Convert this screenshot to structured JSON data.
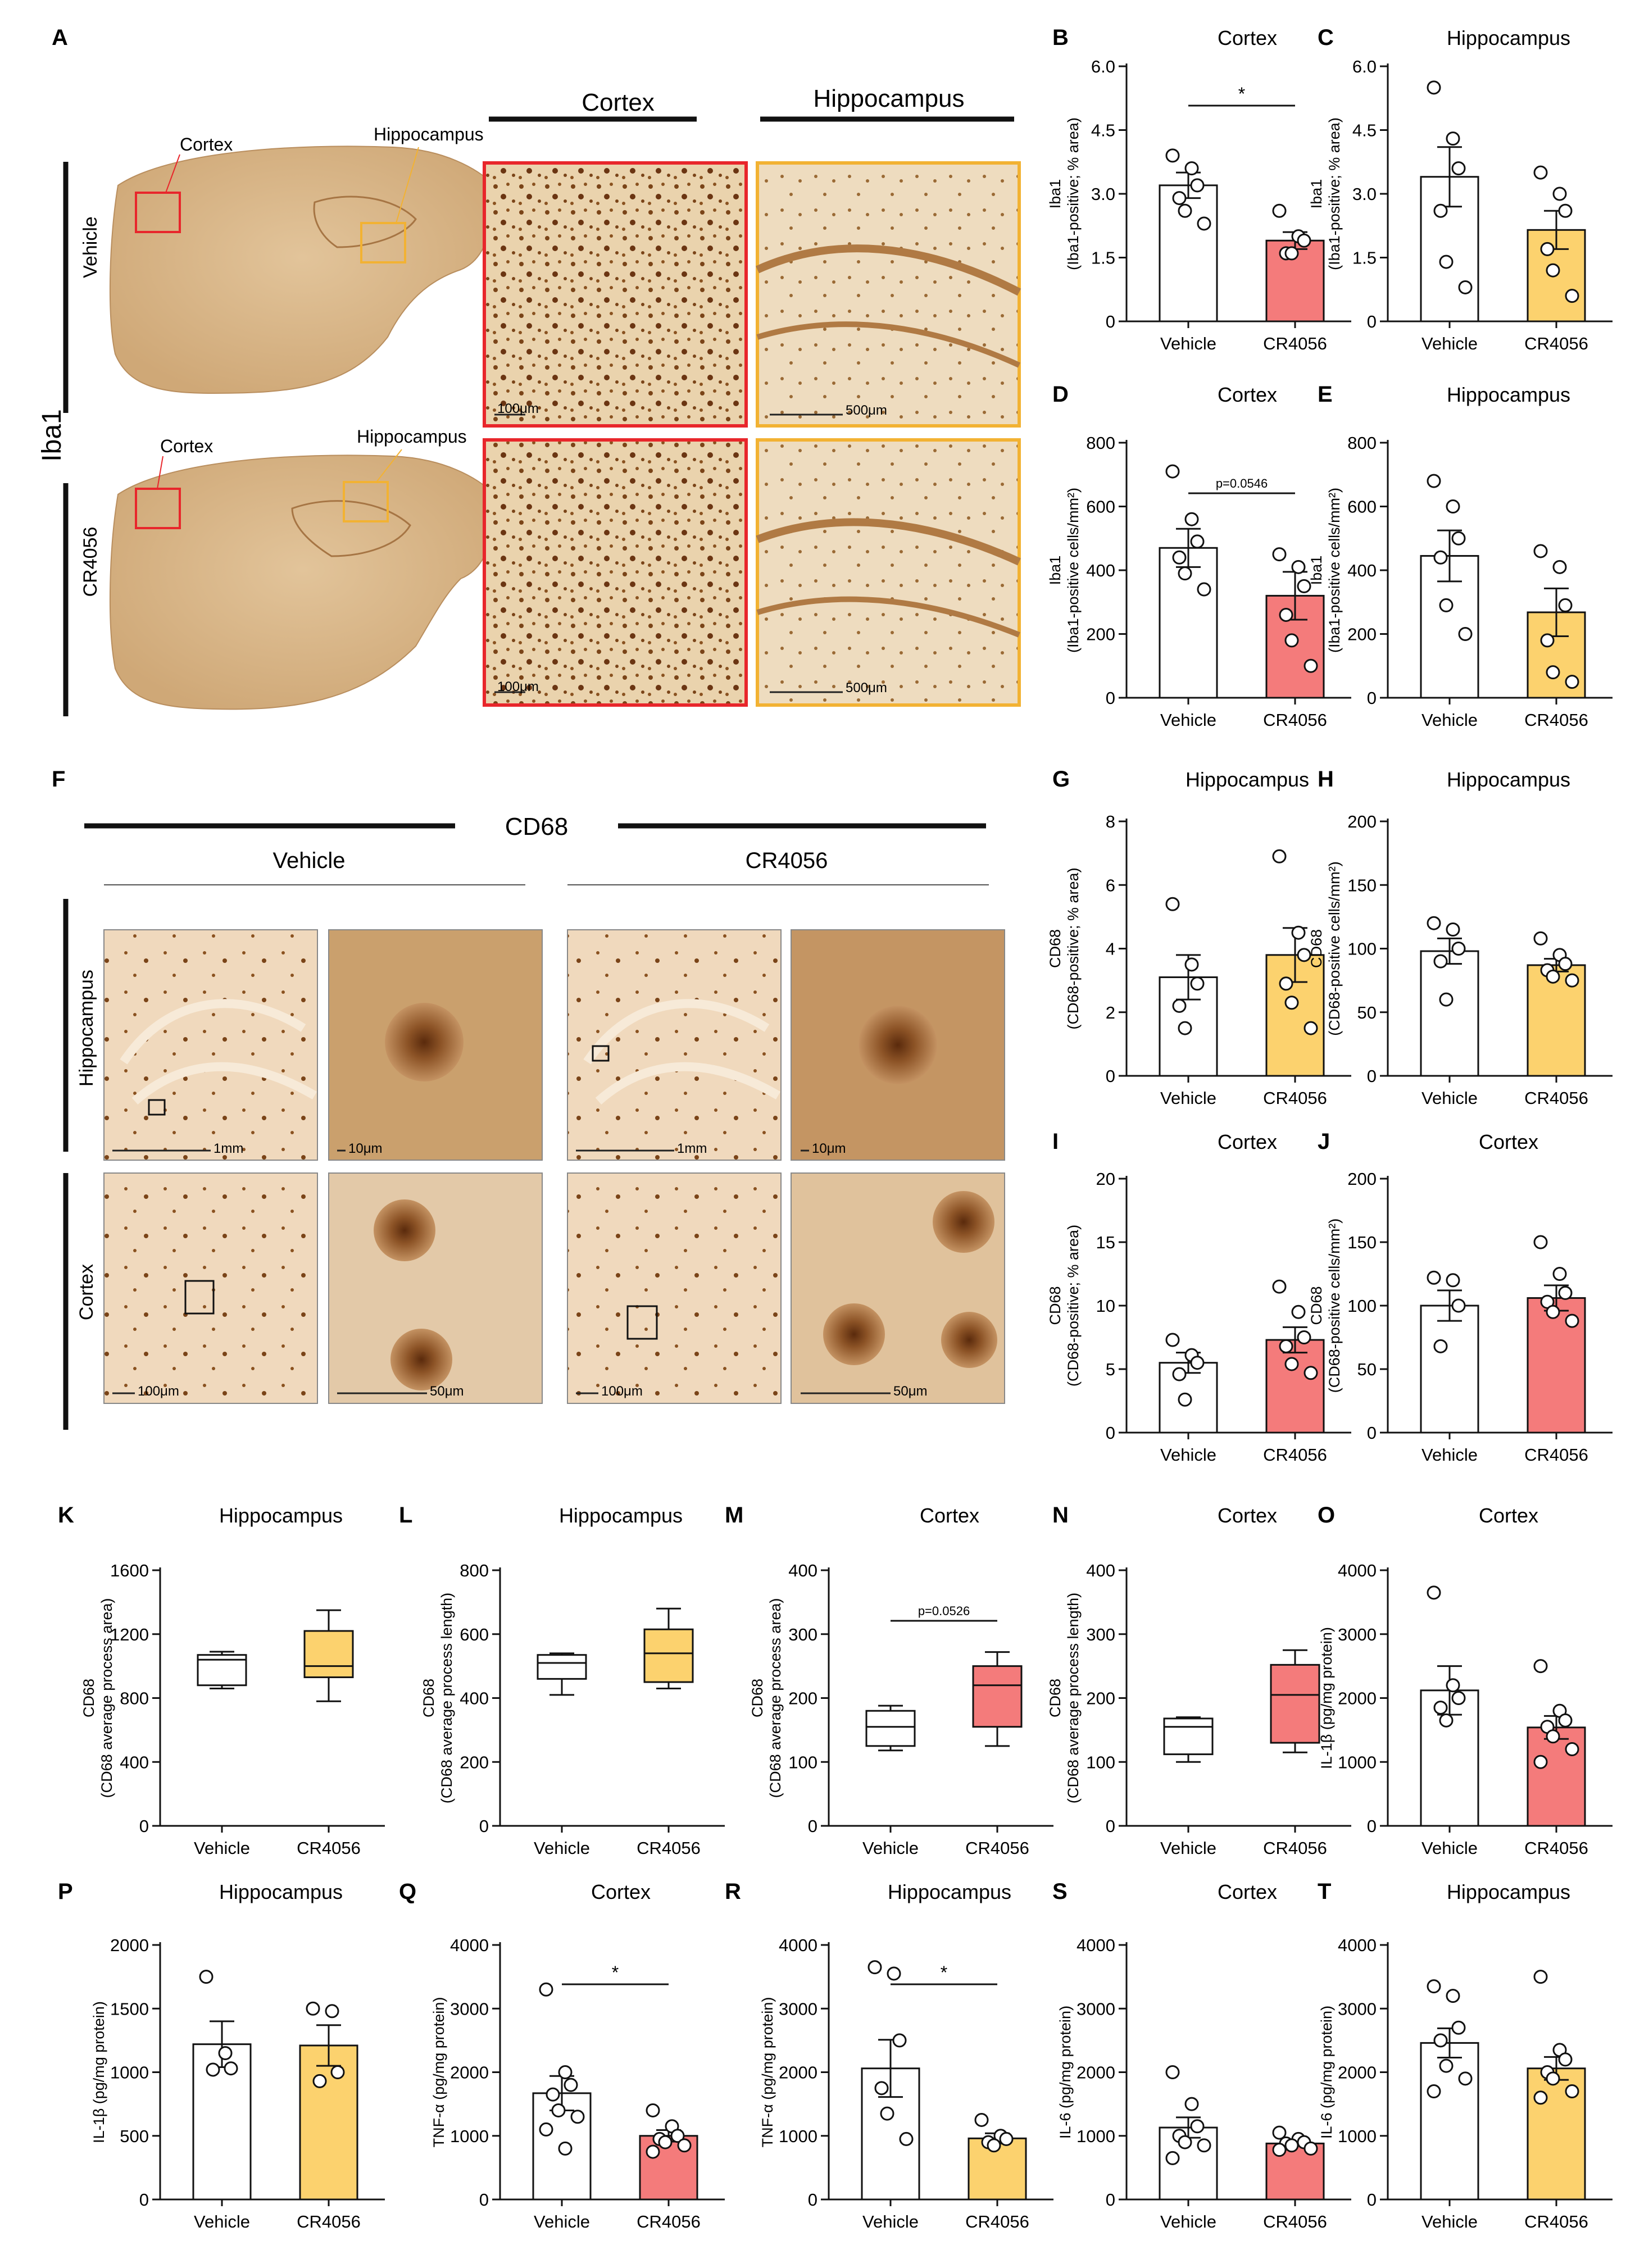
{
  "panel_A": {
    "letter": "A",
    "col_headers": [
      "Cortex",
      "Hippocampus"
    ],
    "rows": [
      "Vehicle",
      "CR4056"
    ],
    "stain": "Iba1",
    "region_labels": [
      "Cortex",
      "Hippocampus"
    ],
    "scale_bars": [
      "100μm",
      "500μm"
    ]
  },
  "panel_F": {
    "letter": "F",
    "title": "CD68",
    "groups": [
      "Vehicle",
      "CR4056"
    ],
    "rows": [
      "Hippocampus",
      "Cortex"
    ],
    "scale_bars_hippo": [
      "1mm",
      "10μm"
    ],
    "scale_bars_cortex": [
      "100μm",
      "50μm"
    ]
  },
  "colors": {
    "red": "#f47b7b",
    "yellow": "#fcd26e",
    "white": "#ffffff",
    "red_box": "#e8262b",
    "yellow_box": "#f2b233"
  },
  "chart_data": [
    {
      "letter": "B",
      "title": "Cortex",
      "type": "bar",
      "ylabel": "Iba1",
      "ylabel2": "(Iba1-positive; % area)",
      "categories": [
        "Vehicle",
        "CR4056"
      ],
      "colors": [
        "white",
        "red"
      ],
      "values": [
        3.2,
        1.9
      ],
      "sem": [
        0.3,
        0.2
      ],
      "points": [
        [
          3.9,
          3.6,
          3.2,
          2.9,
          2.6,
          2.3
        ],
        [
          2.6,
          2.0,
          1.9,
          1.6,
          1.6
        ]
      ],
      "ylim": [
        0,
        6
      ],
      "ticks": [
        "0",
        "1.5",
        "3.0",
        "4.5",
        "6.0"
      ],
      "sig": "*"
    },
    {
      "letter": "C",
      "title": "Hippocampus",
      "type": "bar",
      "ylabel": "Iba1",
      "ylabel2": "(Iba1-positive; % area)",
      "categories": [
        "Vehicle",
        "CR4056"
      ],
      "colors": [
        "white",
        "yellow"
      ],
      "values": [
        3.4,
        2.15
      ],
      "sem": [
        0.7,
        0.45
      ],
      "points": [
        [
          5.5,
          4.3,
          3.6,
          2.6,
          1.4,
          0.8
        ],
        [
          3.5,
          3.0,
          2.6,
          1.7,
          1.2,
          0.6
        ]
      ],
      "ylim": [
        0,
        6
      ],
      "ticks": [
        "0",
        "1.5",
        "3.0",
        "4.5",
        "6.0"
      ],
      "sig": ""
    },
    {
      "letter": "D",
      "title": "Cortex",
      "type": "bar",
      "ylabel": "Iba1",
      "ylabel2": "(Iba1-positive cells/mm²)",
      "categories": [
        "Vehicle",
        "CR4056"
      ],
      "colors": [
        "white",
        "red"
      ],
      "values": [
        470,
        320
      ],
      "sem": [
        60,
        75
      ],
      "points": [
        [
          710,
          560,
          490,
          440,
          390,
          340
        ],
        [
          450,
          410,
          350,
          260,
          180,
          100
        ]
      ],
      "ylim": [
        0,
        800
      ],
      "ticks": [
        "0",
        "200",
        "400",
        "600",
        "800"
      ],
      "sig": "p=0.0546"
    },
    {
      "letter": "E",
      "title": "Hippocampus",
      "type": "bar",
      "ylabel": "Iba1",
      "ylabel2": "(Iba1-positive cells/mm²)",
      "categories": [
        "Vehicle",
        "CR4056"
      ],
      "colors": [
        "white",
        "yellow"
      ],
      "values": [
        445,
        268
      ],
      "sem": [
        80,
        75
      ],
      "points": [
        [
          680,
          600,
          500,
          440,
          290,
          200
        ],
        [
          460,
          410,
          290,
          180,
          80,
          50
        ]
      ],
      "ylim": [
        0,
        800
      ],
      "ticks": [
        "0",
        "200",
        "400",
        "600",
        "800"
      ],
      "sig": ""
    },
    {
      "letter": "G",
      "title": "Hippocampus",
      "type": "bar",
      "ylabel": "CD68",
      "ylabel2": "(CD68-positive; % area)",
      "categories": [
        "Vehicle",
        "CR4056"
      ],
      "colors": [
        "white",
        "yellow"
      ],
      "values": [
        3.1,
        3.8
      ],
      "sem": [
        0.7,
        0.85
      ],
      "points": [
        [
          5.4,
          3.5,
          2.9,
          2.2,
          1.5
        ],
        [
          6.9,
          4.5,
          3.8,
          2.9,
          2.3,
          1.5
        ]
      ],
      "ylim": [
        0,
        8
      ],
      "ticks": [
        "0",
        "2",
        "4",
        "6",
        "8"
      ],
      "sig": ""
    },
    {
      "letter": "H",
      "title": "Hippocampus",
      "type": "bar",
      "ylabel": "CD68",
      "ylabel2": "(CD68-positive cells/mm²)",
      "categories": [
        "Vehicle",
        "CR4056"
      ],
      "colors": [
        "white",
        "yellow"
      ],
      "values": [
        98,
        87
      ],
      "sem": [
        10,
        5
      ],
      "points": [
        [
          120,
          115,
          100,
          90,
          60
        ],
        [
          108,
          95,
          88,
          83,
          78,
          75
        ]
      ],
      "ylim": [
        0,
        200
      ],
      "ticks": [
        "0",
        "50",
        "100",
        "150",
        "200"
      ],
      "sig": ""
    },
    {
      "letter": "I",
      "title": "Cortex",
      "type": "bar",
      "ylabel": "CD68",
      "ylabel2": "(CD68-positive; % area)",
      "categories": [
        "Vehicle",
        "CR4056"
      ],
      "colors": [
        "white",
        "red"
      ],
      "values": [
        5.5,
        7.3
      ],
      "sem": [
        0.8,
        1.0
      ],
      "points": [
        [
          7.3,
          6.1,
          5.5,
          4.6,
          2.6
        ],
        [
          11.5,
          9.5,
          7.5,
          6.8,
          5.4,
          4.7
        ]
      ],
      "ylim": [
        0,
        20
      ],
      "ticks": [
        "0",
        "5",
        "10",
        "15",
        "20"
      ],
      "sig": ""
    },
    {
      "letter": "J",
      "title": "Cortex",
      "type": "bar",
      "ylabel": "CD68",
      "ylabel2": "(CD68-positive cells/mm²)",
      "categories": [
        "Vehicle",
        "CR4056"
      ],
      "colors": [
        "white",
        "red"
      ],
      "values": [
        100,
        106
      ],
      "sem": [
        12,
        10
      ],
      "points": [
        [
          122,
          120,
          100,
          68
        ],
        [
          150,
          125,
          110,
          103,
          95,
          88
        ]
      ],
      "ylim": [
        0,
        200
      ],
      "ticks": [
        "0",
        "50",
        "100",
        "150",
        "200"
      ],
      "sig": ""
    },
    {
      "letter": "K",
      "title": "Hippocampus",
      "type": "box",
      "ylabel": "CD68",
      "ylabel2": "(CD68 average process area)",
      "categories": [
        "Vehicle",
        "CR4056"
      ],
      "colors": [
        "white",
        "yellow"
      ],
      "box": [
        [
          860,
          880,
          1040,
          1070,
          1090
        ],
        [
          780,
          930,
          1000,
          1220,
          1350
        ]
      ],
      "ylim": [
        0,
        1600
      ],
      "ticks": [
        "0",
        "400",
        "800",
        "1200",
        "1600"
      ],
      "sig": ""
    },
    {
      "letter": "L",
      "title": "Hippocampus",
      "type": "box",
      "ylabel": "CD68",
      "ylabel2": "(CD68 average process length)",
      "categories": [
        "Vehicle",
        "CR4056"
      ],
      "colors": [
        "white",
        "yellow"
      ],
      "box": [
        [
          410,
          460,
          510,
          535,
          540
        ],
        [
          430,
          450,
          540,
          615,
          680
        ]
      ],
      "ylim": [
        0,
        800
      ],
      "ticks": [
        "0",
        "200",
        "400",
        "600",
        "800"
      ],
      "sig": ""
    },
    {
      "letter": "M",
      "title": "Cortex",
      "type": "box",
      "ylabel": "CD68",
      "ylabel2": "(CD68 average process area)",
      "categories": [
        "Vehicle",
        "CR4056"
      ],
      "colors": [
        "white",
        "red"
      ],
      "box": [
        [
          118,
          125,
          155,
          180,
          188
        ],
        [
          125,
          155,
          220,
          250,
          272
        ]
      ],
      "ylim": [
        0,
        400
      ],
      "ticks": [
        "0",
        "100",
        "200",
        "300",
        "400"
      ],
      "sig": "p=0.0526"
    },
    {
      "letter": "N",
      "title": "Cortex",
      "type": "box",
      "ylabel": "CD68",
      "ylabel2": "(CD68 average process length)",
      "categories": [
        "Vehicle",
        "CR4056"
      ],
      "colors": [
        "white",
        "red"
      ],
      "box": [
        [
          100,
          112,
          155,
          168,
          170
        ],
        [
          115,
          130,
          205,
          252,
          275
        ]
      ],
      "ylim": [
        0,
        400
      ],
      "ticks": [
        "0",
        "100",
        "200",
        "300",
        "400"
      ],
      "sig": ""
    },
    {
      "letter": "O",
      "title": "Cortex",
      "type": "bar",
      "ylabel": "IL-1β (pg/mg protein)",
      "ylabel2": "",
      "categories": [
        "Vehicle",
        "CR4056"
      ],
      "colors": [
        "white",
        "red"
      ],
      "values": [
        2120,
        1540
      ],
      "sem": [
        380,
        180
      ],
      "points": [
        [
          3650,
          2200,
          2000,
          1850,
          1650
        ],
        [
          2500,
          1800,
          1650,
          1550,
          1400,
          1200,
          1000
        ]
      ],
      "ylim": [
        0,
        4000
      ],
      "ticks": [
        "0",
        "1000",
        "2000",
        "3000",
        "4000"
      ],
      "sig": ""
    },
    {
      "letter": "P",
      "title": "Hippocampus",
      "type": "bar",
      "ylabel": "IL-1β (pg/mg protein)",
      "ylabel2": "",
      "categories": [
        "Vehicle",
        "CR4056"
      ],
      "colors": [
        "white",
        "yellow"
      ],
      "values": [
        1220,
        1210
      ],
      "sem": [
        180,
        160
      ],
      "points": [
        [
          1750,
          1150,
          1030,
          1020
        ],
        [
          1500,
          1480,
          1000,
          930
        ]
      ],
      "ylim": [
        0,
        2000
      ],
      "ticks": [
        "0",
        "500",
        "1000",
        "1500",
        "2000"
      ],
      "sig": ""
    },
    {
      "letter": "Q",
      "title": "Cortex",
      "type": "bar",
      "ylabel": "TNF-α (pg/mg protein)",
      "ylabel2": "",
      "categories": [
        "Vehicle",
        "CR4056"
      ],
      "colors": [
        "white",
        "red"
      ],
      "values": [
        1670,
        1000
      ],
      "sem": [
        270,
        90
      ],
      "points": [
        [
          3300,
          2000,
          1800,
          1650,
          1400,
          1300,
          1100,
          800
        ],
        [
          1400,
          1150,
          1000,
          950,
          900,
          850,
          750
        ]
      ],
      "ylim": [
        0,
        4000
      ],
      "ticks": [
        "0",
        "1000",
        "2000",
        "3000",
        "4000"
      ],
      "sig": "*"
    },
    {
      "letter": "R",
      "title": "Hippocampus",
      "type": "bar",
      "ylabel": "TNF-α (pg/mg protein)",
      "ylabel2": "",
      "categories": [
        "Vehicle",
        "CR4056"
      ],
      "colors": [
        "white",
        "yellow"
      ],
      "values": [
        2060,
        960
      ],
      "sem": [
        450,
        80
      ],
      "points": [
        [
          3650,
          3550,
          2500,
          1750,
          1350,
          950
        ],
        [
          1250,
          1000,
          950,
          900,
          850
        ]
      ],
      "ylim": [
        0,
        4000
      ],
      "ticks": [
        "0",
        "1000",
        "2000",
        "3000",
        "4000"
      ],
      "sig": "*"
    },
    {
      "letter": "S",
      "title": "Cortex",
      "type": "bar",
      "ylabel": "IL-6 (pg/mg protein)",
      "ylabel2": "",
      "categories": [
        "Vehicle",
        "CR4056"
      ],
      "colors": [
        "white",
        "red"
      ],
      "values": [
        1130,
        880
      ],
      "sem": [
        160,
        40
      ],
      "points": [
        [
          2000,
          1500,
          1150,
          1000,
          900,
          850,
          650
        ],
        [
          1050,
          950,
          900,
          880,
          850,
          800,
          780
        ]
      ],
      "ylim": [
        0,
        4000
      ],
      "ticks": [
        "0",
        "1000",
        "2000",
        "3000",
        "4000"
      ],
      "sig": ""
    },
    {
      "letter": "T",
      "title": "Hippocampus",
      "type": "bar",
      "ylabel": "IL-6 (pg/mg protein)",
      "ylabel2": "",
      "categories": [
        "Vehicle",
        "CR4056"
      ],
      "colors": [
        "white",
        "yellow"
      ],
      "values": [
        2460,
        2060
      ],
      "sem": [
        230,
        180
      ],
      "points": [
        [
          3350,
          3200,
          2700,
          2500,
          2100,
          1900,
          1700
        ],
        [
          3500,
          2350,
          2200,
          2000,
          1900,
          1700,
          1600
        ]
      ],
      "ylim": [
        0,
        4000
      ],
      "ticks": [
        "0",
        "1000",
        "2000",
        "3000",
        "4000"
      ],
      "sig": ""
    }
  ]
}
